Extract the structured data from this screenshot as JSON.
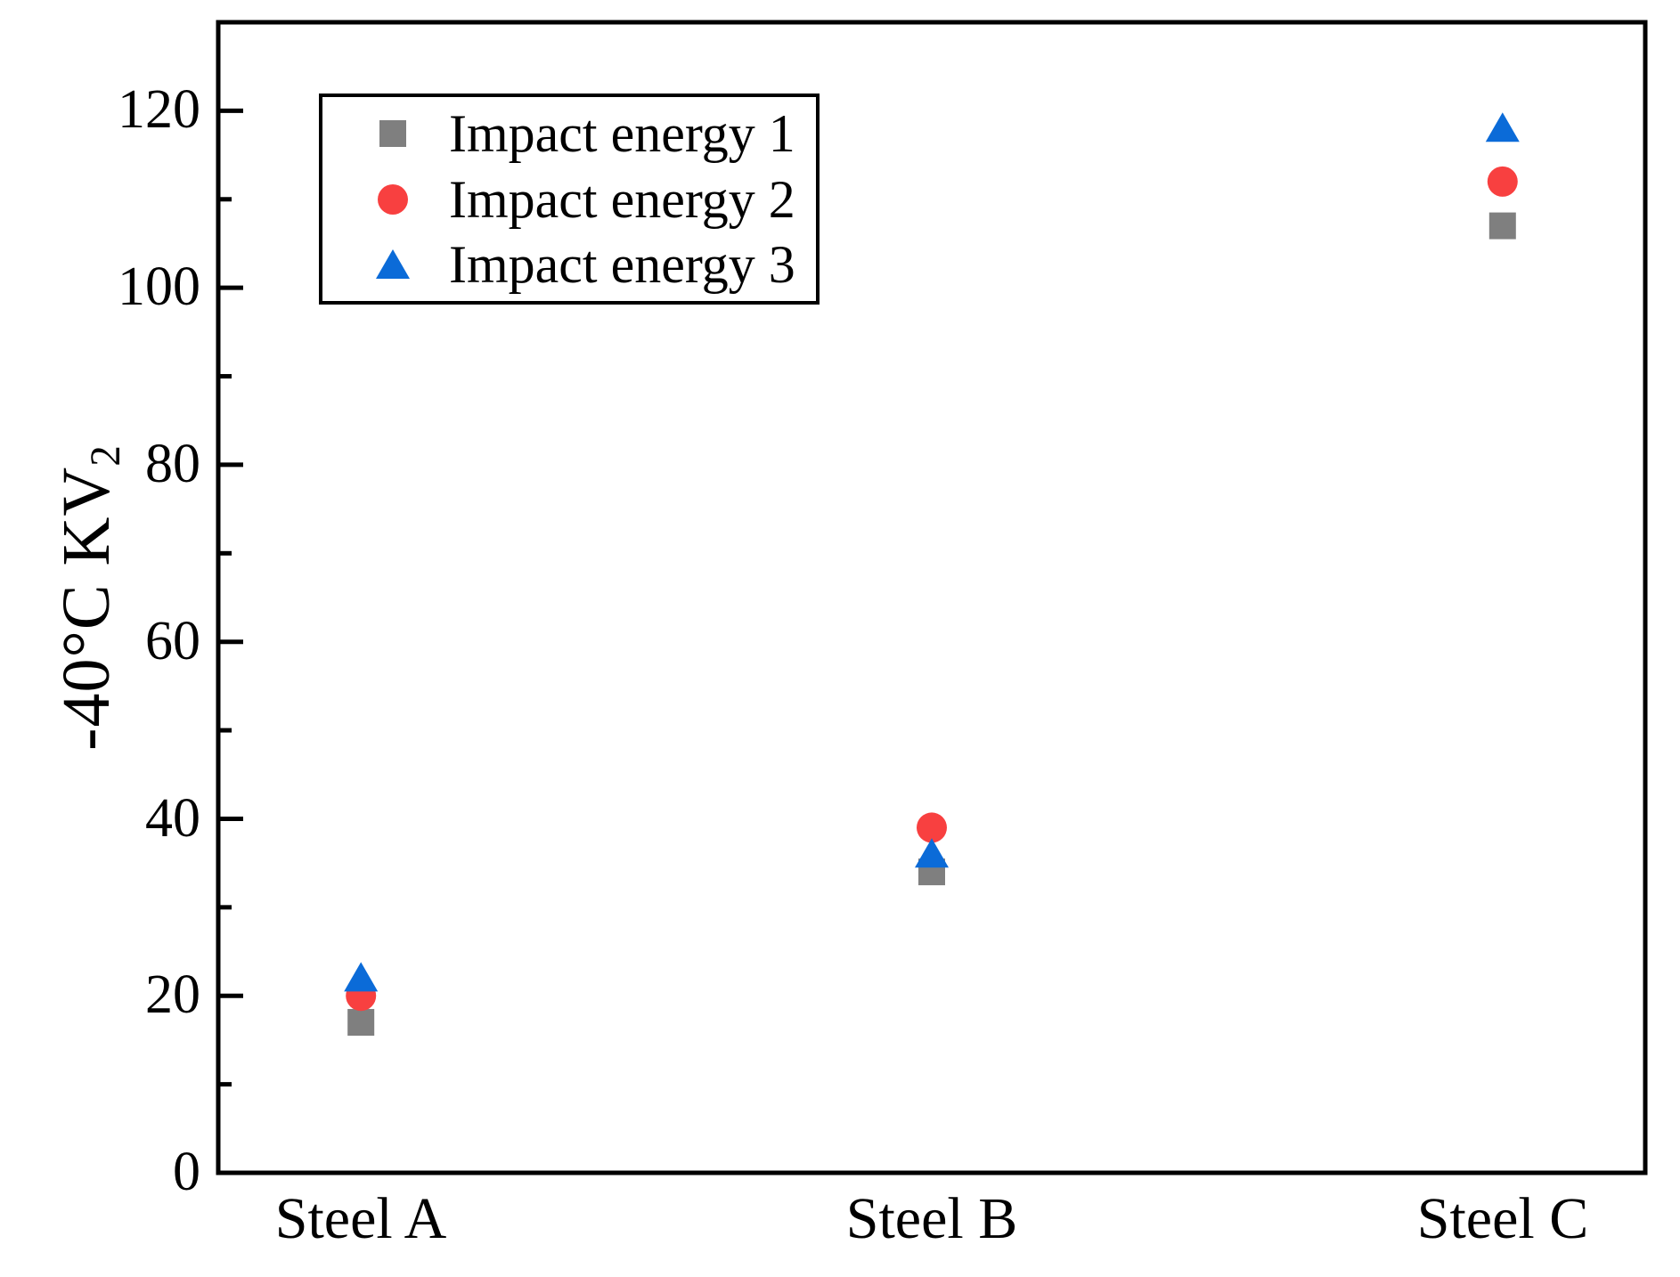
{
  "chart_data": {
    "type": "scatter",
    "title": "",
    "xlabel": "",
    "ylabel_main": "-40°C KV",
    "ylabel_sub": "2",
    "categories": [
      "Steel A",
      "Steel B",
      "Steel C"
    ],
    "series": [
      {
        "name": "Impact energy 1",
        "marker": "square",
        "color": "#7F7F7F",
        "values": [
          17,
          34,
          107
        ]
      },
      {
        "name": "Impact energy 2",
        "marker": "circle",
        "color": "#F84040",
        "values": [
          20,
          39,
          112
        ]
      },
      {
        "name": "Impact energy 3",
        "marker": "triangle",
        "color": "#0B6BD8",
        "values": [
          22,
          36,
          118
        ]
      }
    ],
    "yticks": [
      0,
      20,
      40,
      60,
      80,
      100,
      120
    ],
    "minor_yticks": [
      10,
      30,
      50,
      70,
      90,
      110
    ],
    "ylim": [
      0,
      130
    ],
    "grid": false,
    "legend_position": "top-left",
    "axis_color": "#000000",
    "background_color": "#FFFFFF"
  }
}
